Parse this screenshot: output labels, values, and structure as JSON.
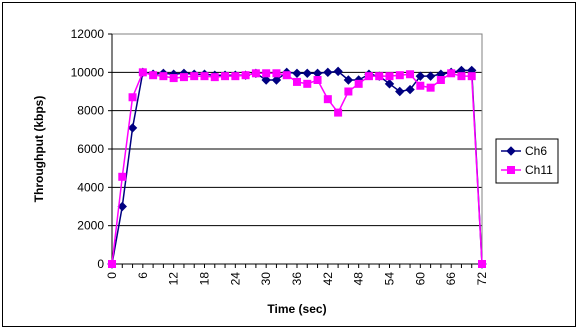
{
  "chart_data": {
    "type": "line",
    "xlabel": "Time (sec)",
    "ylabel": "Throughput (kbps)",
    "xlim": [
      0,
      72
    ],
    "ylim": [
      0,
      12000
    ],
    "x_ticks": [
      0,
      6,
      12,
      18,
      24,
      30,
      36,
      42,
      48,
      54,
      60,
      66,
      72
    ],
    "y_ticks": [
      0,
      2000,
      4000,
      6000,
      8000,
      10000,
      12000
    ],
    "grid": "horizontal",
    "legend_position": "right",
    "x": [
      0,
      2,
      4,
      6,
      8,
      10,
      12,
      14,
      16,
      18,
      20,
      22,
      24,
      26,
      28,
      30,
      32,
      34,
      36,
      38,
      40,
      42,
      44,
      46,
      48,
      50,
      52,
      54,
      56,
      58,
      60,
      62,
      64,
      66,
      68,
      70,
      72
    ],
    "series": [
      {
        "name": "Ch6",
        "color": "#000080",
        "marker": "diamond",
        "values": [
          0,
          3000,
          7100,
          10000,
          9900,
          9950,
          9900,
          9950,
          9900,
          9900,
          9850,
          9850,
          9850,
          9850,
          9950,
          9600,
          9600,
          10000,
          9950,
          9950,
          9950,
          10000,
          10050,
          9600,
          9600,
          9900,
          9800,
          9400,
          9000,
          9100,
          9800,
          9800,
          9900,
          10000,
          10100,
          10100,
          0
        ]
      },
      {
        "name": "Ch11",
        "color": "#FF00FF",
        "marker": "square",
        "values": [
          0,
          4550,
          8700,
          10000,
          9850,
          9800,
          9700,
          9750,
          9800,
          9800,
          9750,
          9800,
          9800,
          9850,
          9950,
          9950,
          9950,
          9850,
          9500,
          9400,
          9600,
          8600,
          7900,
          9000,
          9400,
          9800,
          9800,
          9800,
          9850,
          9900,
          9300,
          9200,
          9600,
          9950,
          9800,
          9800,
          0
        ]
      }
    ]
  }
}
